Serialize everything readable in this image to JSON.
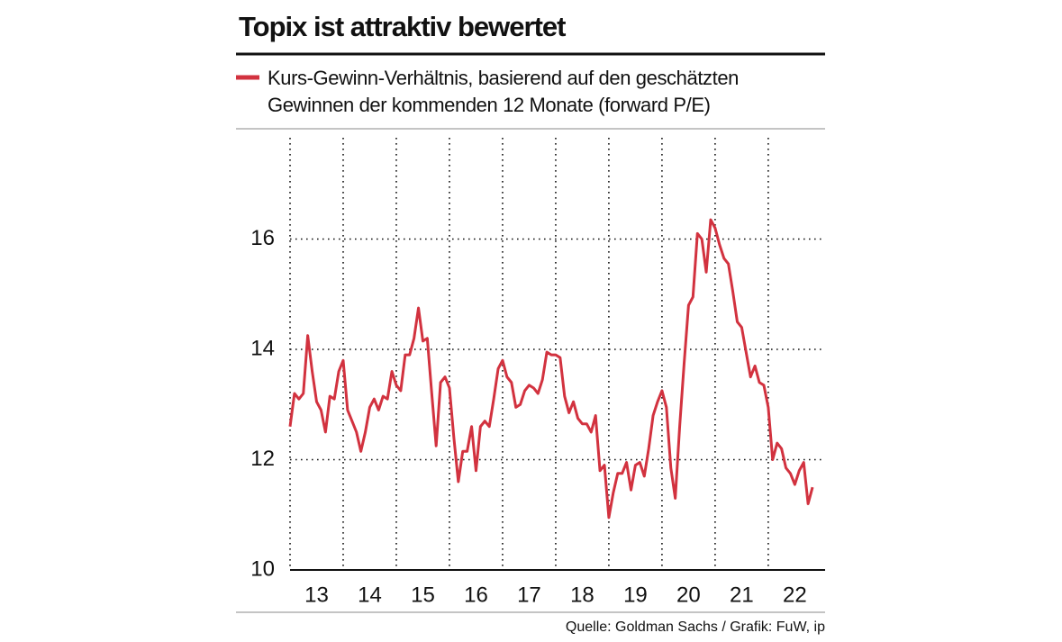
{
  "chart_data": {
    "type": "line",
    "title": "Topix ist attraktiv bewertet",
    "source": "Quelle: Goldman Sachs / Grafik: FuW, ip",
    "x": [
      13,
      13.083,
      13.167,
      13.25,
      13.333,
      13.417,
      13.5,
      13.583,
      13.667,
      13.75,
      13.833,
      13.917,
      14,
      14.083,
      14.167,
      14.25,
      14.333,
      14.417,
      14.5,
      14.583,
      14.667,
      14.75,
      14.833,
      14.917,
      15,
      15.083,
      15.167,
      15.25,
      15.333,
      15.417,
      15.5,
      15.583,
      15.667,
      15.75,
      15.833,
      15.917,
      16,
      16.083,
      16.167,
      16.25,
      16.333,
      16.417,
      16.5,
      16.583,
      16.667,
      16.75,
      16.833,
      16.917,
      17,
      17.083,
      17.167,
      17.25,
      17.333,
      17.417,
      17.5,
      17.583,
      17.667,
      17.75,
      17.833,
      17.917,
      18,
      18.083,
      18.167,
      18.25,
      18.333,
      18.417,
      18.5,
      18.583,
      18.667,
      18.75,
      18.833,
      18.917,
      19,
      19.083,
      19.167,
      19.25,
      19.333,
      19.417,
      19.5,
      19.583,
      19.667,
      19.75,
      19.833,
      19.917,
      20,
      20.083,
      20.167,
      20.25,
      20.333,
      20.417,
      20.5,
      20.583,
      20.667,
      20.75,
      20.833,
      20.917,
      21,
      21.083,
      21.167,
      21.25,
      21.333,
      21.417,
      21.5,
      21.583,
      21.667,
      21.75,
      21.833,
      21.917,
      22,
      22.083,
      22.167,
      22.25,
      22.333,
      22.417,
      22.5,
      22.583,
      22.667,
      22.75,
      22.833
    ],
    "series": [
      {
        "name": "Kurs-Gewinn-Verhältnis, basierend auf den geschätzten Gewinnen der kommenden 12 Monate (forward P/E)",
        "color": "#d2323f",
        "values": [
          12.6,
          13.2,
          13.1,
          13.2,
          14.25,
          13.6,
          13.05,
          12.9,
          12.5,
          13.15,
          13.1,
          13.6,
          13.8,
          12.9,
          12.7,
          12.5,
          12.15,
          12.5,
          12.95,
          13.1,
          12.9,
          13.15,
          13.1,
          13.6,
          13.35,
          13.25,
          13.9,
          13.9,
          14.2,
          14.75,
          14.15,
          14.2,
          13.2,
          12.25,
          13.4,
          13.5,
          13.3,
          12.4,
          11.6,
          12.15,
          12.15,
          12.6,
          11.8,
          12.6,
          12.7,
          12.6,
          13.1,
          13.65,
          13.8,
          13.5,
          13.4,
          12.95,
          13.0,
          13.25,
          13.35,
          13.3,
          13.2,
          13.45,
          13.95,
          13.9,
          13.9,
          13.85,
          13.15,
          12.85,
          13.05,
          12.75,
          12.65,
          12.65,
          12.5,
          12.8,
          11.8,
          11.9,
          10.95,
          11.4,
          11.75,
          11.75,
          11.95,
          11.45,
          11.9,
          11.95,
          11.7,
          12.2,
          12.8,
          13.05,
          13.25,
          12.95,
          11.85,
          11.3,
          12.6,
          13.75,
          14.8,
          14.95,
          16.1,
          16.0,
          15.4,
          16.35,
          16.2,
          15.9,
          15.65,
          15.55,
          15.05,
          14.5,
          14.4,
          13.95,
          13.5,
          13.7,
          13.4,
          13.35,
          12.95,
          12.0,
          12.3,
          12.2,
          11.85,
          11.75,
          11.55,
          11.8,
          11.95,
          11.2,
          11.5
        ]
      }
    ],
    "xlim": [
      13,
      23.07
    ],
    "xticks": [
      {
        "value": 13,
        "label": "13"
      },
      {
        "value": 14,
        "label": "14"
      },
      {
        "value": 15,
        "label": "15"
      },
      {
        "value": 16,
        "label": "16"
      },
      {
        "value": 17,
        "label": "17"
      },
      {
        "value": 18,
        "label": "18"
      },
      {
        "value": 19,
        "label": "19"
      },
      {
        "value": 20,
        "label": "20"
      },
      {
        "value": 21,
        "label": "21"
      },
      {
        "value": 22,
        "label": "22"
      }
    ],
    "ylim": [
      10,
      18
    ],
    "yticks": [
      10,
      12,
      14,
      16
    ],
    "grid": true,
    "legend": "top-left"
  }
}
